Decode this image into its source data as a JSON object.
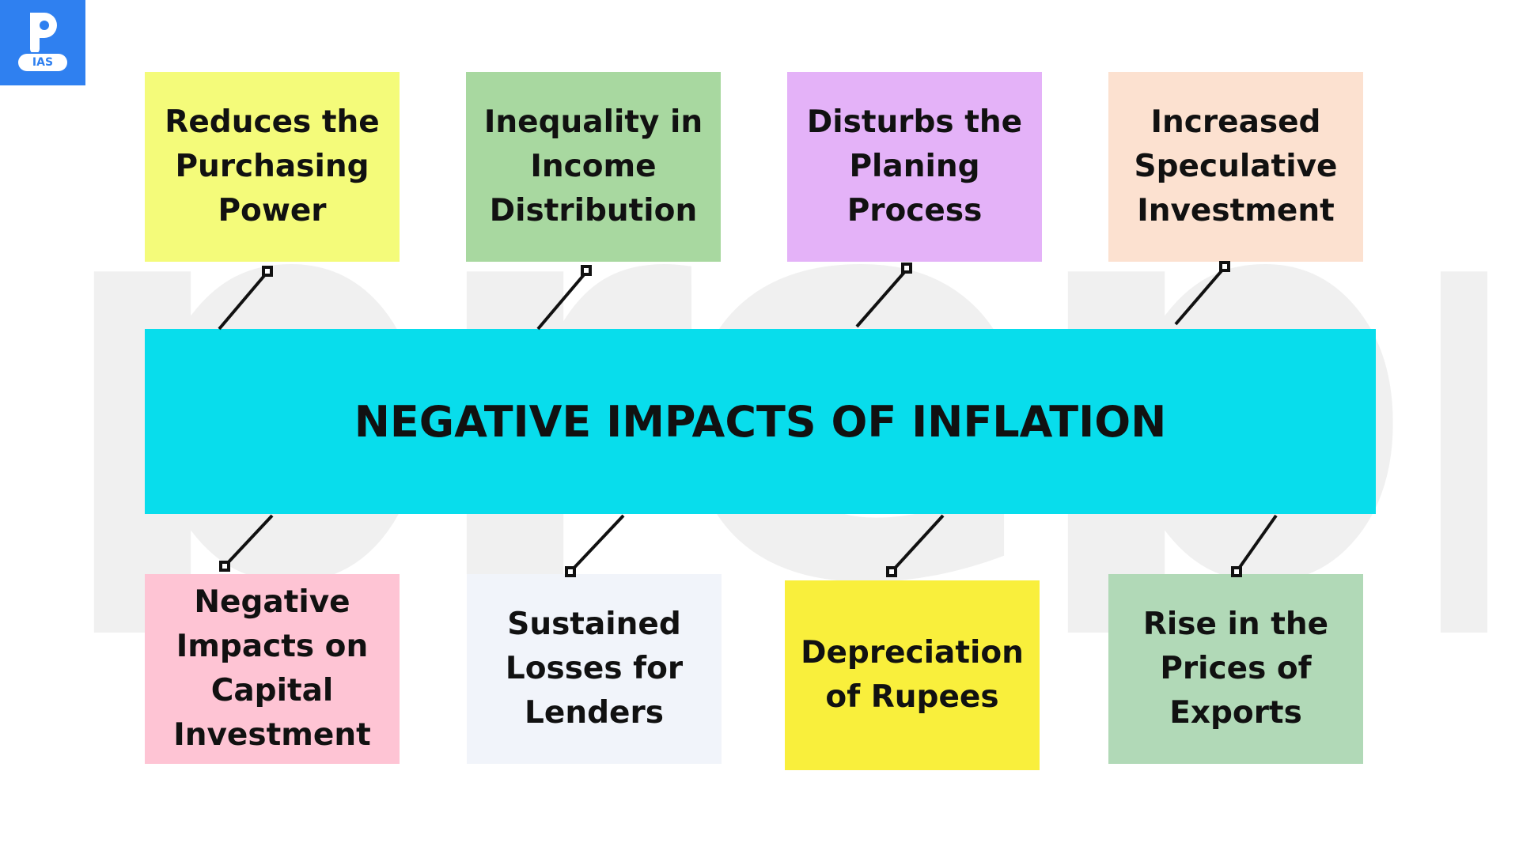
{
  "logo": {
    "badge": "IAS"
  },
  "watermark": "prepp",
  "title": "NEGATIVE IMPACTS OF INFLATION",
  "top_boxes": [
    {
      "text": "Reduces the Purchasing Power",
      "color": "#f4fb7a"
    },
    {
      "text": "Inequality in Income Distribution",
      "color": "#a8d8a0"
    },
    {
      "text": "Disturbs the Planing Process",
      "color": "#e4b2f8"
    },
    {
      "text": "Increased Speculative Investment",
      "color": "#fce1d0"
    }
  ],
  "bottom_boxes": [
    {
      "text": "Negative Impacts on Capital Investment",
      "color": "#fec4d4"
    },
    {
      "text": "Sustained Losses for Lenders",
      "color": "#f1f4fa"
    },
    {
      "text": "Depreciation of Rupees",
      "color": "#f9ef3c"
    },
    {
      "text": "Rise in the Prices of Exports",
      "color": "#b1d9b7"
    }
  ],
  "colors": {
    "banner": "#00dceb",
    "logo": "#2f80f0"
  }
}
